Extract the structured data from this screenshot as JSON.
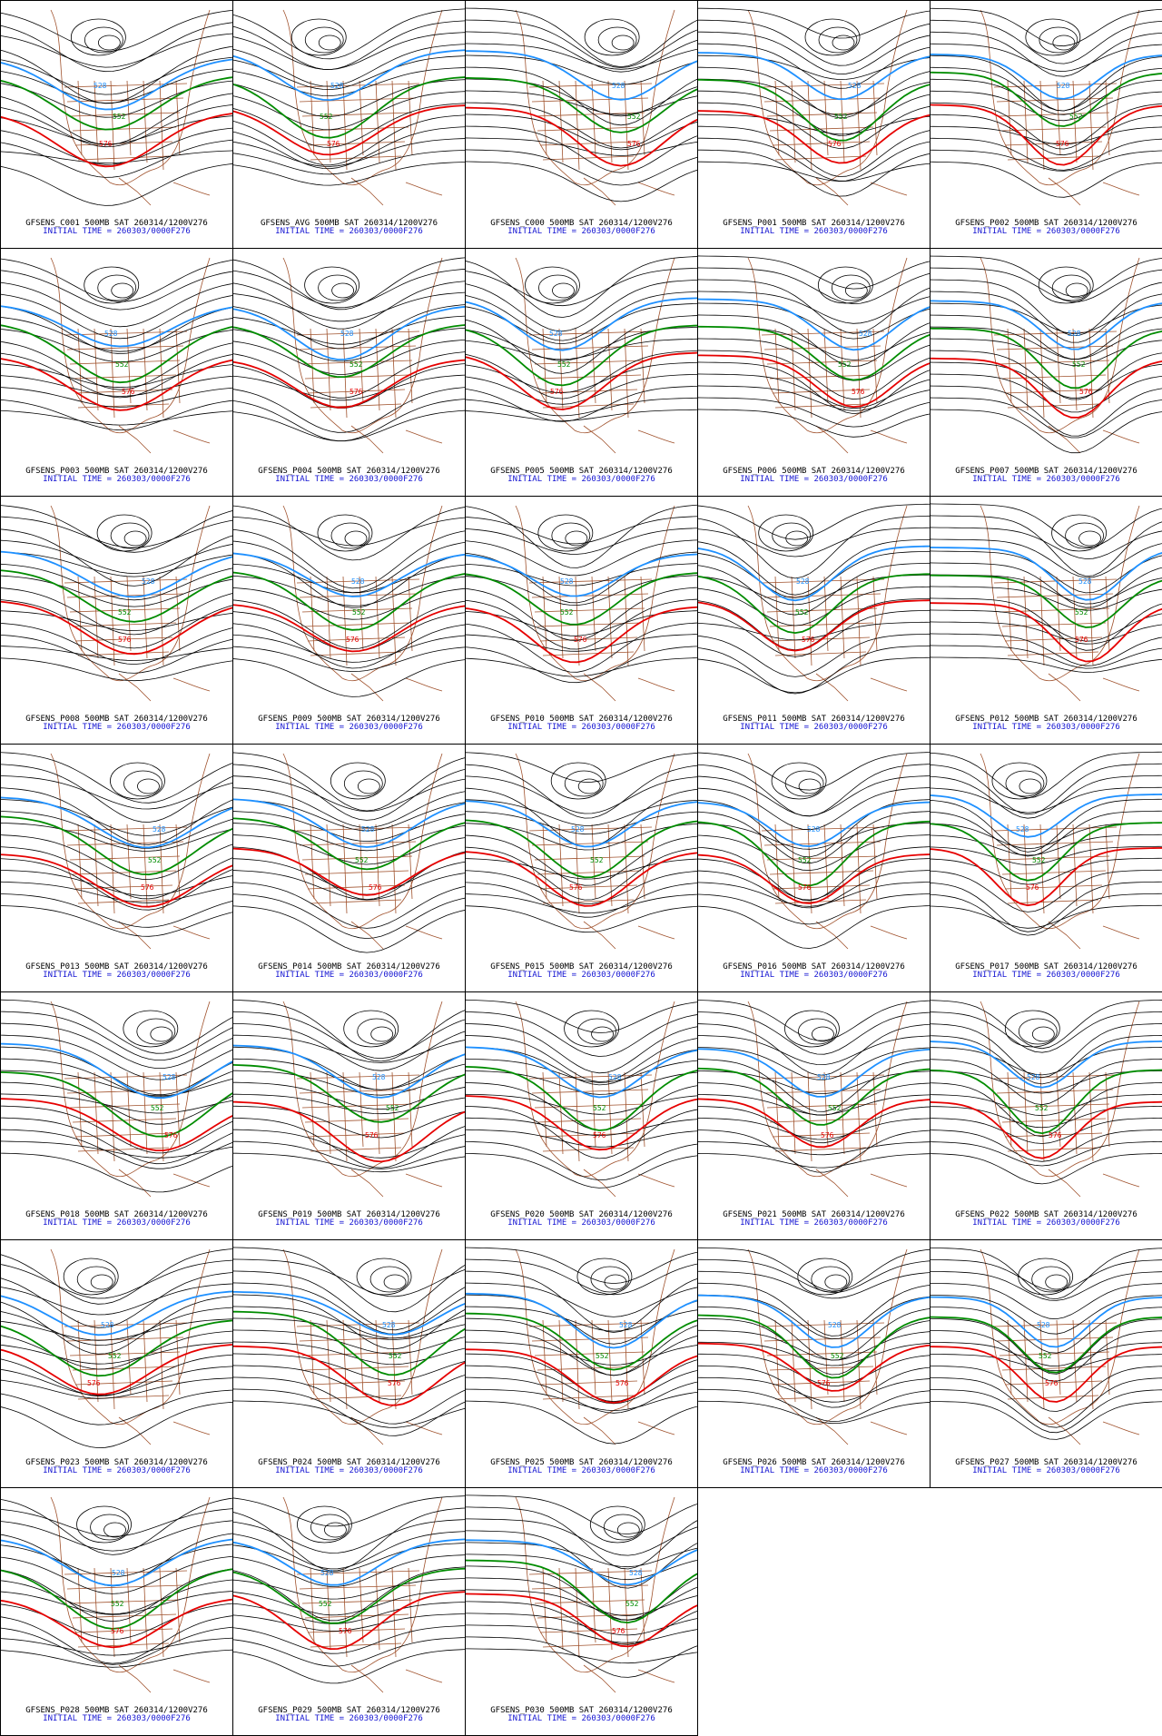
{
  "figure": {
    "columns": 5,
    "panels": [
      {
        "member": "GFSENS_C001",
        "title": "GFSENS_C001 500MB SAT 260314/1200V276",
        "subtitle": "INITIAL TIME = 260303/0000F276"
      },
      {
        "member": "GFSENS_AVG",
        "title": "GFSENS_AVG 500MB SAT 260314/1200V276",
        "subtitle": "INITIAL TIME = 260303/0000F276"
      },
      {
        "member": "GFSENS_C000",
        "title": "GFSENS_C000 500MB SAT 260314/1200V276",
        "subtitle": "INITIAL TIME = 260303/0000F276"
      },
      {
        "member": "GFSENS_P001",
        "title": "GFSENS_P001 500MB SAT 260314/1200V276",
        "subtitle": "INITIAL TIME = 260303/0000F276"
      },
      {
        "member": "GFSENS_P002",
        "title": "GFSENS_P002 500MB SAT 260314/1200V276",
        "subtitle": "INITIAL TIME = 260303/0000F276"
      },
      {
        "member": "GFSENS_P003",
        "title": "GFSENS_P003 500MB SAT 260314/1200V276",
        "subtitle": "INITIAL TIME = 260303/0000F276"
      },
      {
        "member": "GFSENS_P004",
        "title": "GFSENS_P004 500MB SAT 260314/1200V276",
        "subtitle": "INITIAL TIME = 260303/0000F276"
      },
      {
        "member": "GFSENS_P005",
        "title": "GFSENS_P005 500MB SAT 260314/1200V276",
        "subtitle": "INITIAL TIME = 260303/0000F276"
      },
      {
        "member": "GFSENS_P006",
        "title": "GFSENS_P006 500MB SAT 260314/1200V276",
        "subtitle": "INITIAL TIME = 260303/0000F276"
      },
      {
        "member": "GFSENS_P007",
        "title": "GFSENS_P007 500MB SAT 260314/1200V276",
        "subtitle": "INITIAL TIME = 260303/0000F276"
      },
      {
        "member": "GFSENS_P008",
        "title": "GFSENS_P008 500MB SAT 260314/1200V276",
        "subtitle": "INITIAL TIME = 260303/0000F276"
      },
      {
        "member": "GFSENS_P009",
        "title": "GFSENS_P009 500MB SAT 260314/1200V276",
        "subtitle": "INITIAL TIME = 260303/0000F276"
      },
      {
        "member": "GFSENS_P010",
        "title": "GFSENS_P010 500MB SAT 260314/1200V276",
        "subtitle": "INITIAL TIME = 260303/0000F276"
      },
      {
        "member": "GFSENS_P011",
        "title": "GFSENS_P011 500MB SAT 260314/1200V276",
        "subtitle": "INITIAL TIME = 260303/0000F276"
      },
      {
        "member": "GFSENS_P012",
        "title": "GFSENS_P012 500MB SAT 260314/1200V276",
        "subtitle": "INITIAL TIME = 260303/0000F276"
      },
      {
        "member": "GFSENS_P013",
        "title": "GFSENS_P013 500MB SAT 260314/1200V276",
        "subtitle": "INITIAL TIME = 260303/0000F276"
      },
      {
        "member": "GFSENS_P014",
        "title": "GFSENS_P014 500MB SAT 260314/1200V276",
        "subtitle": "INITIAL TIME = 260303/0000F276"
      },
      {
        "member": "GFSENS_P015",
        "title": "GFSENS_P015 500MB SAT 260314/1200V276",
        "subtitle": "INITIAL TIME = 260303/0000F276"
      },
      {
        "member": "GFSENS_P016",
        "title": "GFSENS_P016 500MB SAT 260314/1200V276",
        "subtitle": "INITIAL TIME = 260303/0000F276"
      },
      {
        "member": "GFSENS_P017",
        "title": "GFSENS_P017 500MB SAT 260314/1200V276",
        "subtitle": "INITIAL TIME = 260303/0000F276"
      },
      {
        "member": "GFSENS_P018",
        "title": "GFSENS_P018 500MB SAT 260314/1200V276",
        "subtitle": "INITIAL TIME = 260303/0000F276"
      },
      {
        "member": "GFSENS_P019",
        "title": "GFSENS_P019 500MB SAT 260314/1200V276",
        "subtitle": "INITIAL TIME = 260303/0000F276"
      },
      {
        "member": "GFSENS_P020",
        "title": "GFSENS_P020 500MB SAT 260314/1200V276",
        "subtitle": "INITIAL TIME = 260303/0000F276"
      },
      {
        "member": "GFSENS_P021",
        "title": "GFSENS_P021 500MB SAT 260314/1200V276",
        "subtitle": "INITIAL TIME = 260303/0000F276"
      },
      {
        "member": "GFSENS_P022",
        "title": "GFSENS_P022 500MB SAT 260314/1200V276",
        "subtitle": "INITIAL TIME = 260303/0000F276"
      },
      {
        "member": "GFSENS_P023",
        "title": "GFSENS_P023 500MB SAT 260314/1200V276",
        "subtitle": "INITIAL TIME = 260303/0000F276"
      },
      {
        "member": "GFSENS_P024",
        "title": "GFSENS_P024 500MB SAT 260314/1200V276",
        "subtitle": "INITIAL TIME = 260303/0000F276"
      },
      {
        "member": "GFSENS_P025",
        "title": "GFSENS_P025 500MB SAT 260314/1200V276",
        "subtitle": "INITIAL TIME = 260303/0000F276"
      },
      {
        "member": "GFSENS_P026",
        "title": "GFSENS_P026 500MB SAT 260314/1200V276",
        "subtitle": "INITIAL TIME = 260303/0000F276"
      },
      {
        "member": "GFSENS_P027",
        "title": "GFSENS_P027 500MB SAT 260314/1200V276",
        "subtitle": "INITIAL TIME = 260303/0000F276"
      },
      {
        "member": "GFSENS_P028",
        "title": "GFSENS_P028 500MB SAT 260314/1200V276",
        "subtitle": "INITIAL TIME = 260303/0000F276"
      },
      {
        "member": "GFSENS_P029",
        "title": "GFSENS_P029 500MB SAT 260314/1200V276",
        "subtitle": "INITIAL TIME = 260303/0000F276"
      },
      {
        "member": "GFSENS_P030",
        "title": "GFSENS_P030 500MB SAT 260314/1200V276",
        "subtitle": "INITIAL TIME = 260303/0000F276"
      }
    ],
    "contour_labels": {
      "low": "528",
      "mid": "552",
      "high": "576"
    },
    "colors": {
      "contour": "#000000",
      "contour_528": "#1e90ff",
      "contour_552": "#008c00",
      "contour_576": "#e60000",
      "map_boundaries": "#a0522d",
      "caption_title": "#000000",
      "caption_time": "#1414d2",
      "background": "#ffffff"
    }
  }
}
